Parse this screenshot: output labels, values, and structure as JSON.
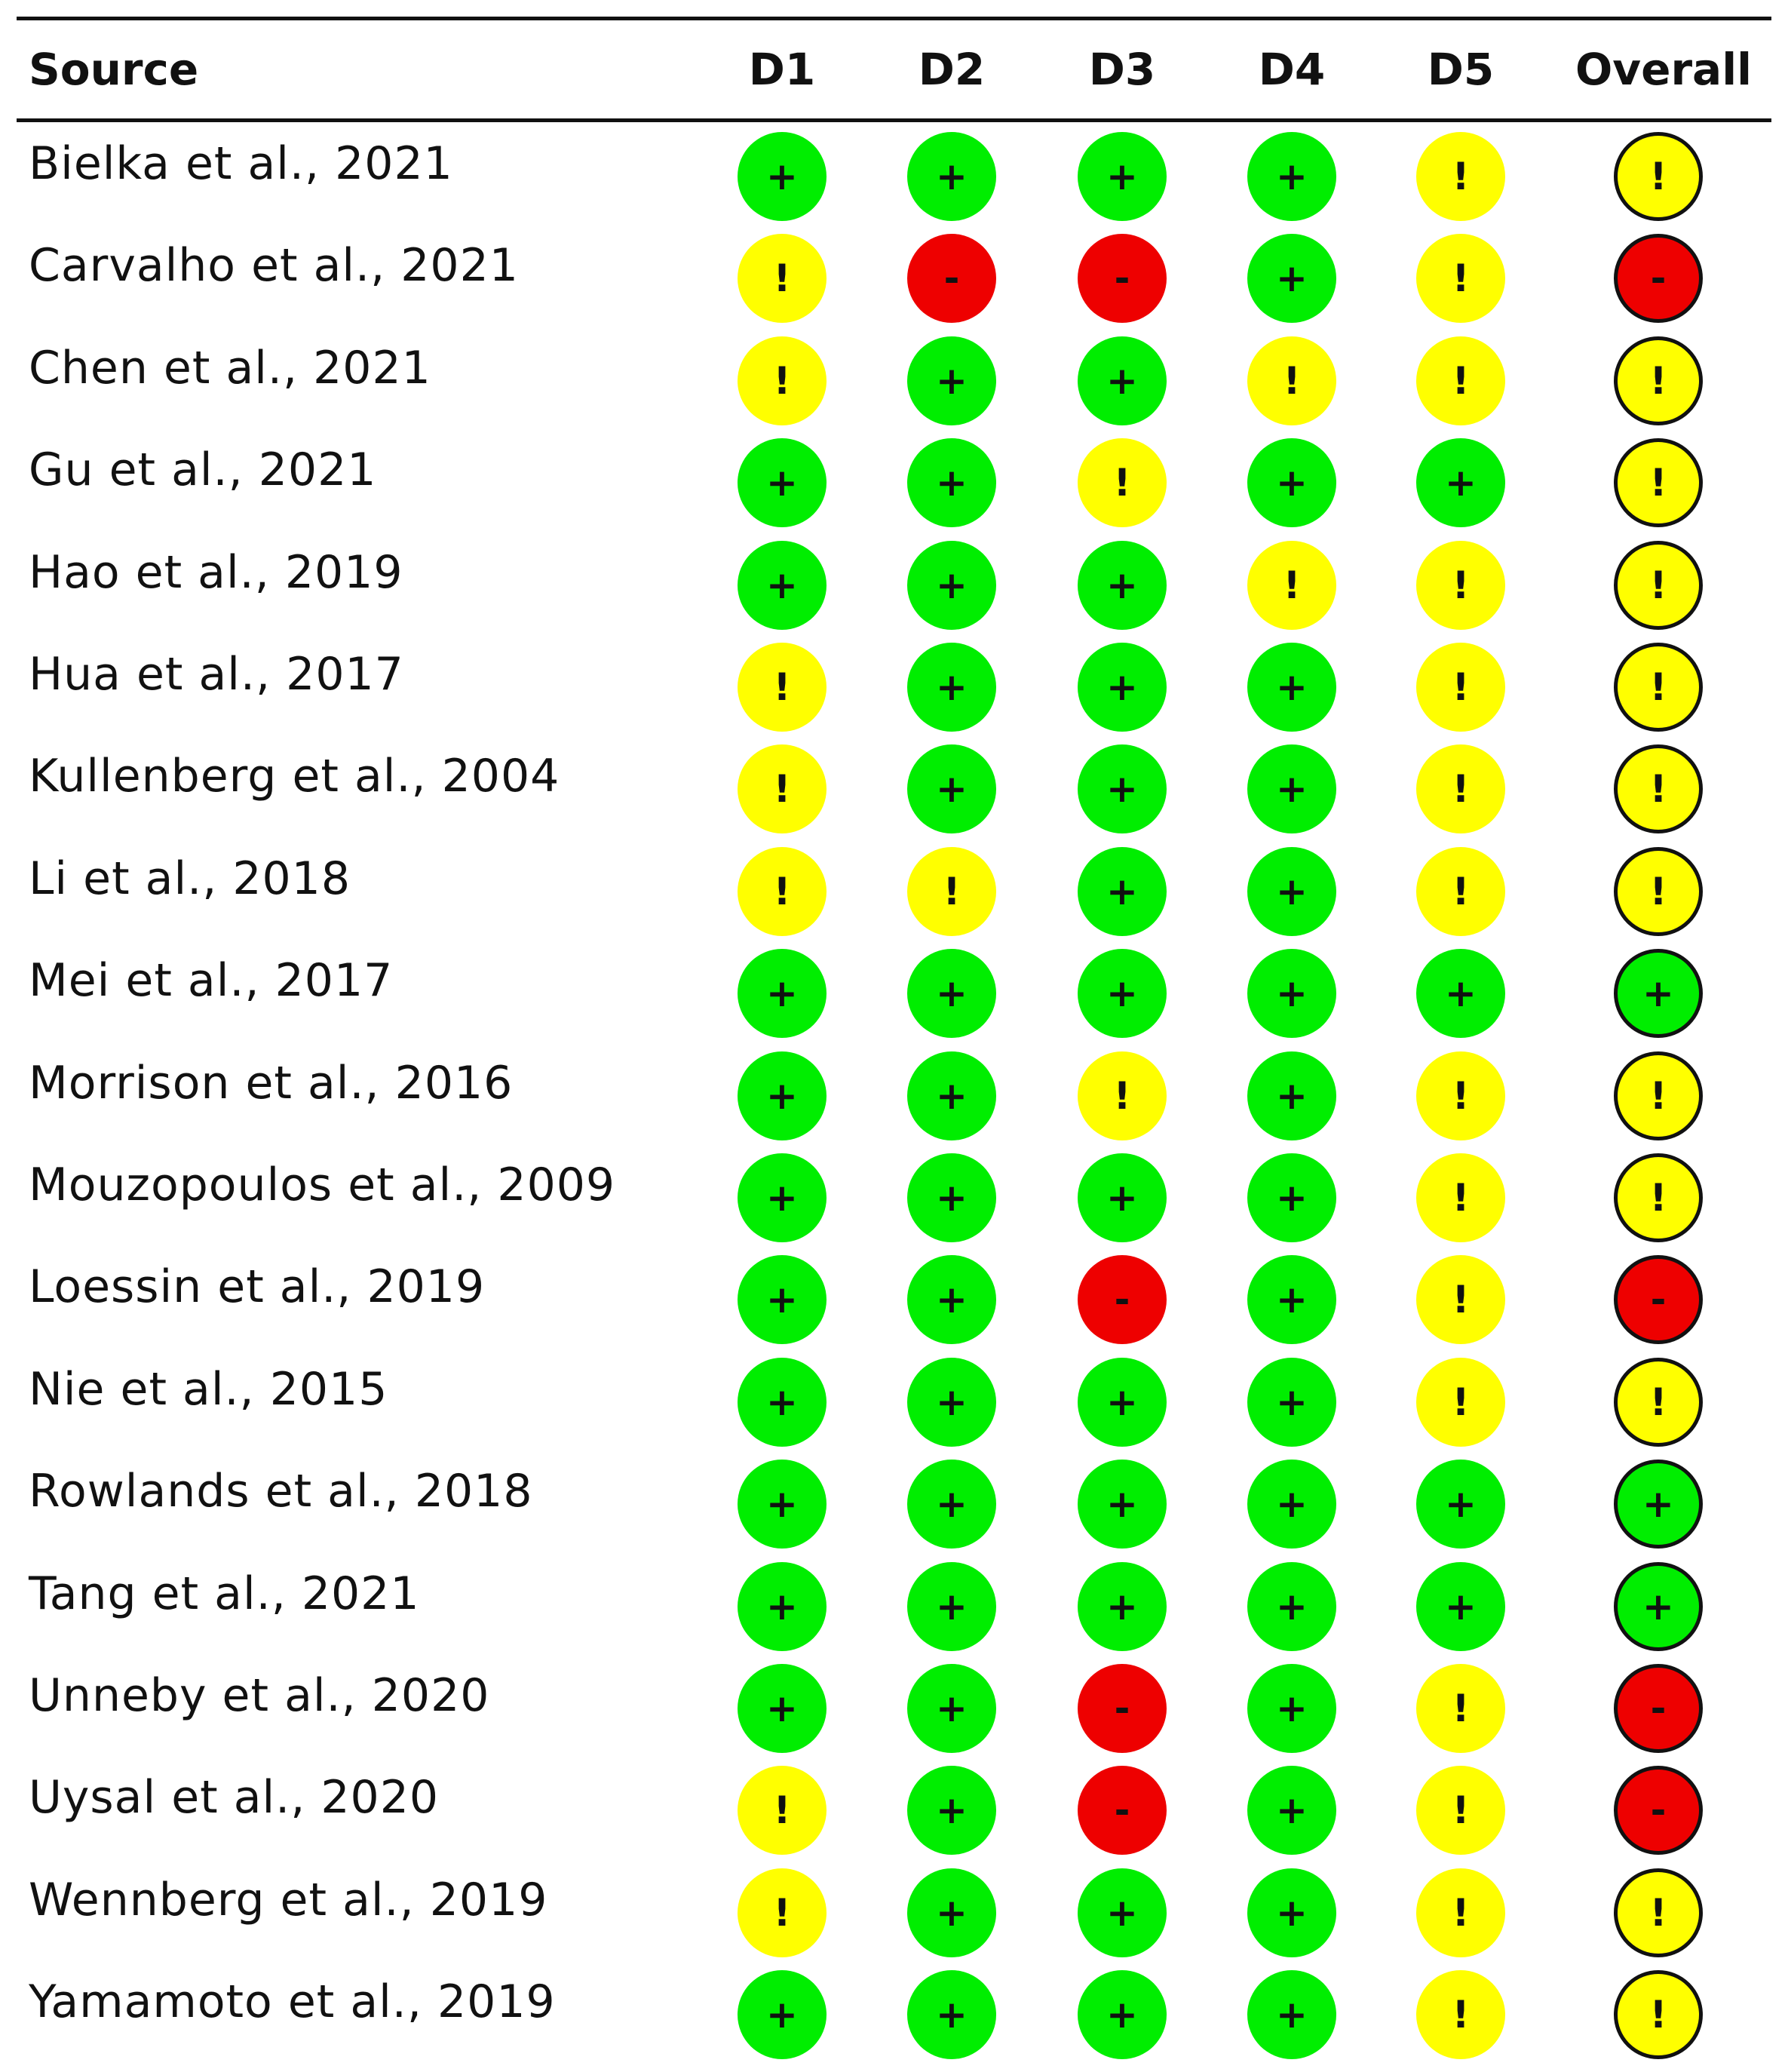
{
  "chart_data": {
    "type": "table",
    "title": "",
    "header": {
      "source": "Source",
      "columns": [
        "D1",
        "D2",
        "D3",
        "D4",
        "D5",
        "Overall"
      ]
    },
    "colors": {
      "low": "#00ee00",
      "some": "#ffff00",
      "high": "#ee0000"
    },
    "symbols": {
      "low": "+",
      "some": "!",
      "high": "-"
    },
    "rows": [
      {
        "source": "Bielka et al., 2021",
        "ratings": [
          "low",
          "low",
          "low",
          "low",
          "some",
          "some"
        ]
      },
      {
        "source": "Carvalho et al., 2021",
        "ratings": [
          "some",
          "high",
          "high",
          "low",
          "some",
          "high"
        ]
      },
      {
        "source": "Chen et al., 2021",
        "ratings": [
          "some",
          "low",
          "low",
          "some",
          "some",
          "some"
        ]
      },
      {
        "source": "Gu et al., 2021",
        "ratings": [
          "low",
          "low",
          "some",
          "low",
          "low",
          "some"
        ]
      },
      {
        "source": "Hao et al., 2019",
        "ratings": [
          "low",
          "low",
          "low",
          "some",
          "some",
          "some"
        ]
      },
      {
        "source": "Hua et al., 2017",
        "ratings": [
          "some",
          "low",
          "low",
          "low",
          "some",
          "some"
        ]
      },
      {
        "source": "Kullenberg et al., 2004",
        "ratings": [
          "some",
          "low",
          "low",
          "low",
          "some",
          "some"
        ]
      },
      {
        "source": "Li et al., 2018",
        "ratings": [
          "some",
          "some",
          "low",
          "low",
          "some",
          "some"
        ]
      },
      {
        "source": "Mei et al., 2017",
        "ratings": [
          "low",
          "low",
          "low",
          "low",
          "low",
          "low"
        ]
      },
      {
        "source": "Morrison et al., 2016",
        "ratings": [
          "low",
          "low",
          "some",
          "low",
          "some",
          "some"
        ]
      },
      {
        "source": "Mouzopoulos et al., 2009",
        "ratings": [
          "low",
          "low",
          "low",
          "low",
          "some",
          "some"
        ]
      },
      {
        "source": "Loessin et al., 2019",
        "ratings": [
          "low",
          "low",
          "high",
          "low",
          "some",
          "high"
        ]
      },
      {
        "source": "Nie et al., 2015",
        "ratings": [
          "low",
          "low",
          "low",
          "low",
          "some",
          "some"
        ]
      },
      {
        "source": "Rowlands et al., 2018",
        "ratings": [
          "low",
          "low",
          "low",
          "low",
          "low",
          "low"
        ]
      },
      {
        "source": "Tang et al., 2021",
        "ratings": [
          "low",
          "low",
          "low",
          "low",
          "low",
          "low"
        ]
      },
      {
        "source": "Unneby et al., 2020",
        "ratings": [
          "low",
          "low",
          "high",
          "low",
          "some",
          "high"
        ]
      },
      {
        "source": "Uysal et al., 2020",
        "ratings": [
          "some",
          "low",
          "high",
          "low",
          "some",
          "high"
        ]
      },
      {
        "source": "Wennberg et al., 2019",
        "ratings": [
          "some",
          "low",
          "low",
          "low",
          "some",
          "some"
        ]
      },
      {
        "source": "Yamamoto et al., 2019",
        "ratings": [
          "low",
          "low",
          "low",
          "low",
          "some",
          "some"
        ]
      }
    ]
  }
}
